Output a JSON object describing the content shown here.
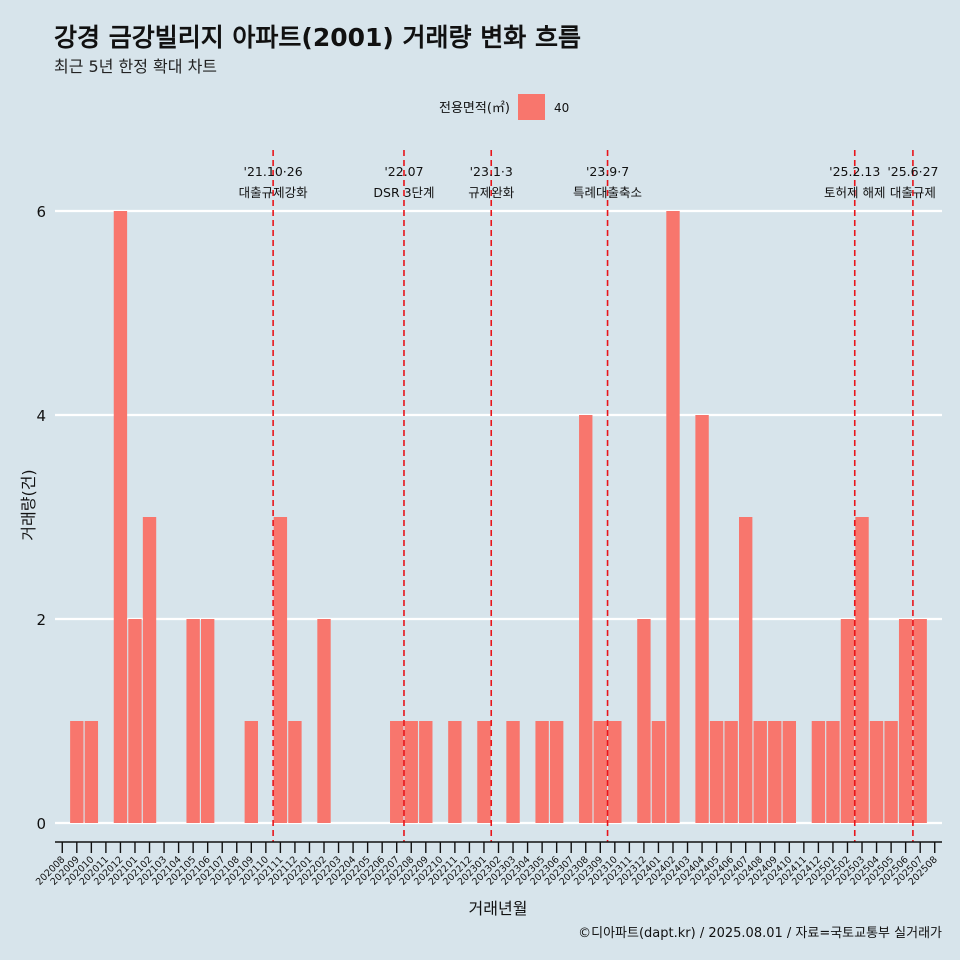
{
  "header": {
    "title": "강경 금강빌리지 아파트(2001) 거래량 변화 흐름",
    "subtitle": "최근 5년 한정 확대 차트"
  },
  "footer": {
    "caption": "©디아파트(dapt.kr) / 2025.08.01 / 자료=국토교통부 실거래가"
  },
  "chart_data": {
    "type": "bar",
    "xlabel": "거래년월",
    "ylabel": "거래량(건)",
    "ylim": [
      0,
      6
    ],
    "yticks": [
      0,
      2,
      4,
      6
    ],
    "legend": {
      "title": "전용면적(㎡)",
      "placement": "top"
    },
    "grid": true,
    "categories": [
      "202008",
      "202009",
      "202010",
      "202011",
      "202012",
      "202101",
      "202102",
      "202103",
      "202104",
      "202105",
      "202106",
      "202107",
      "202108",
      "202109",
      "202110",
      "202111",
      "202112",
      "202201",
      "202202",
      "202203",
      "202204",
      "202205",
      "202206",
      "202207",
      "202208",
      "202209",
      "202210",
      "202211",
      "202212",
      "202301",
      "202302",
      "202303",
      "202304",
      "202305",
      "202306",
      "202307",
      "202308",
      "202309",
      "202310",
      "202311",
      "202312",
      "202401",
      "202402",
      "202403",
      "202404",
      "202405",
      "202406",
      "202407",
      "202408",
      "202409",
      "202410",
      "202411",
      "202412",
      "202501",
      "202502",
      "202503",
      "202504",
      "202505",
      "202506",
      "202507",
      "202508"
    ],
    "series": [
      {
        "name": "40",
        "color": "#f8766d",
        "values": [
          0,
          1,
          1,
          0,
          6,
          2,
          3,
          0,
          0,
          2,
          2,
          0,
          0,
          1,
          0,
          3,
          1,
          0,
          2,
          0,
          0,
          0,
          0,
          1,
          1,
          1,
          0,
          1,
          0,
          1,
          0,
          1,
          0,
          1,
          1,
          0,
          4,
          1,
          1,
          0,
          2,
          1,
          6,
          0,
          4,
          1,
          1,
          3,
          1,
          1,
          1,
          0,
          1,
          1,
          2,
          3,
          1,
          1,
          2,
          2,
          0
        ]
      }
    ],
    "annotations": [
      {
        "after": "202110",
        "date": "'21.10·26",
        "label": "대출규제강화"
      },
      {
        "after": "202207",
        "date": "'22.07",
        "label": "DSR 3단계"
      },
      {
        "after": "202301",
        "date": "'23.1·3",
        "label": "규제완화"
      },
      {
        "after": "202309",
        "date": "'23.9·7",
        "label": "특례대출축소"
      },
      {
        "after": "202502",
        "date": "'25.2.13",
        "label": "토허제 해제"
      },
      {
        "after": "202506",
        "date": "'25.6·27",
        "label": "대출규제"
      }
    ],
    "colors": {
      "bar": "#f8766d",
      "vline": "#e8141a",
      "grid": "#ffffff"
    }
  }
}
